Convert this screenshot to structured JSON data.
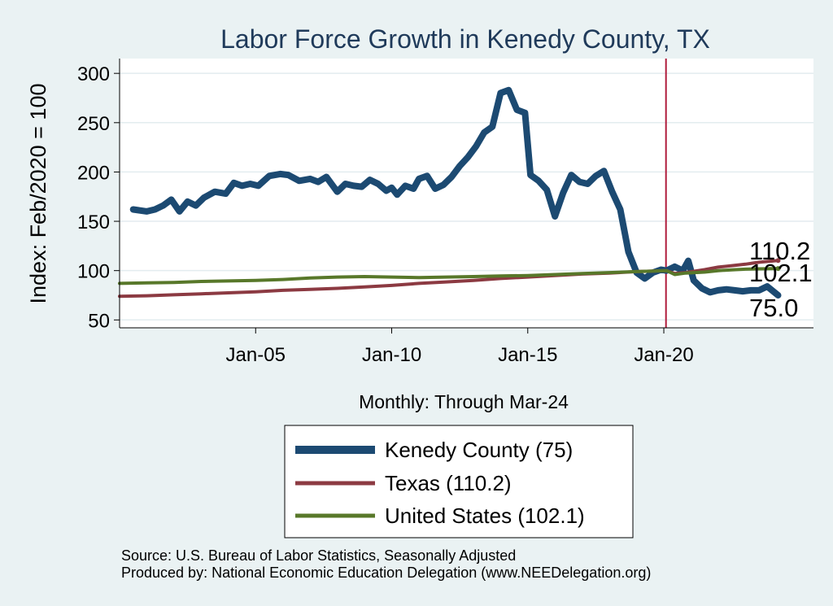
{
  "chart_data": {
    "type": "line",
    "title": "Labor Force Growth in Kenedy  County, TX",
    "ylabel": "Index: Feb/2020 = 100",
    "xlabel": "Monthly: Through Mar-24",
    "ylim": [
      42,
      315
    ],
    "xlim": [
      2000.0,
      2025.5
    ],
    "yticks": [
      50,
      100,
      150,
      200,
      250,
      300
    ],
    "xticks": [
      {
        "label": "Jan-05",
        "value": 2005.0
      },
      {
        "label": "Jan-10",
        "value": 2010.0
      },
      {
        "label": "Jan-15",
        "value": 2015.0
      },
      {
        "label": "Jan-20",
        "value": 2020.0
      }
    ],
    "reference_line": {
      "x": 2020.08,
      "color": "#b01c3c"
    },
    "grid": true,
    "legend_position": "bottom",
    "series": [
      {
        "name": "Kenedy  County",
        "legend": "Kenedy  County (75)",
        "color": "#1c4a72",
        "end_label": "75.0",
        "points": [
          [
            2000.5,
            162
          ],
          [
            2001.0,
            160
          ],
          [
            2001.3,
            162
          ],
          [
            2001.6,
            166
          ],
          [
            2001.9,
            172
          ],
          [
            2002.2,
            160
          ],
          [
            2002.5,
            170
          ],
          [
            2002.8,
            166
          ],
          [
            2003.1,
            174
          ],
          [
            2003.5,
            180
          ],
          [
            2003.9,
            178
          ],
          [
            2004.2,
            189
          ],
          [
            2004.5,
            186
          ],
          [
            2004.8,
            188
          ],
          [
            2005.1,
            186
          ],
          [
            2005.5,
            196
          ],
          [
            2005.9,
            198
          ],
          [
            2006.2,
            197
          ],
          [
            2006.6,
            191
          ],
          [
            2007.0,
            193
          ],
          [
            2007.3,
            190
          ],
          [
            2007.6,
            195
          ],
          [
            2008.0,
            180
          ],
          [
            2008.3,
            188
          ],
          [
            2008.6,
            186
          ],
          [
            2008.9,
            185
          ],
          [
            2009.2,
            192
          ],
          [
            2009.5,
            188
          ],
          [
            2009.8,
            181
          ],
          [
            2010.0,
            184
          ],
          [
            2010.2,
            177
          ],
          [
            2010.5,
            186
          ],
          [
            2010.8,
            183
          ],
          [
            2011.0,
            193
          ],
          [
            2011.3,
            196
          ],
          [
            2011.6,
            183
          ],
          [
            2011.9,
            187
          ],
          [
            2012.2,
            195
          ],
          [
            2012.5,
            206
          ],
          [
            2012.8,
            215
          ],
          [
            2013.1,
            226
          ],
          [
            2013.4,
            240
          ],
          [
            2013.7,
            246
          ],
          [
            2014.0,
            280
          ],
          [
            2014.3,
            283
          ],
          [
            2014.6,
            263
          ],
          [
            2014.9,
            260
          ],
          [
            2015.1,
            197
          ],
          [
            2015.4,
            191
          ],
          [
            2015.7,
            182
          ],
          [
            2016.0,
            155
          ],
          [
            2016.3,
            179
          ],
          [
            2016.6,
            197
          ],
          [
            2016.9,
            190
          ],
          [
            2017.2,
            188
          ],
          [
            2017.5,
            196
          ],
          [
            2017.8,
            201
          ],
          [
            2018.1,
            180
          ],
          [
            2018.4,
            162
          ],
          [
            2018.7,
            119
          ],
          [
            2019.0,
            98
          ],
          [
            2019.3,
            92
          ],
          [
            2019.6,
            98
          ],
          [
            2019.9,
            101
          ],
          [
            2020.1,
            100
          ],
          [
            2020.4,
            104
          ],
          [
            2020.7,
            100
          ],
          [
            2020.9,
            110
          ],
          [
            2021.1,
            90
          ],
          [
            2021.4,
            82
          ],
          [
            2021.7,
            78
          ],
          [
            2022.0,
            80
          ],
          [
            2022.3,
            81
          ],
          [
            2022.6,
            80
          ],
          [
            2022.9,
            79
          ],
          [
            2023.2,
            80
          ],
          [
            2023.5,
            80
          ],
          [
            2023.8,
            84
          ],
          [
            2024.2,
            75
          ]
        ]
      },
      {
        "name": "Texas",
        "legend": "Texas (110.2)",
        "color": "#8c3a42",
        "end_label": "110.2",
        "points": [
          [
            2000.0,
            74
          ],
          [
            2001.0,
            74.5
          ],
          [
            2002.0,
            75.5
          ],
          [
            2003.0,
            76.5
          ],
          [
            2004.0,
            77.5
          ],
          [
            2005.0,
            78.5
          ],
          [
            2006.0,
            80
          ],
          [
            2007.0,
            81
          ],
          [
            2008.0,
            82
          ],
          [
            2009.0,
            83.5
          ],
          [
            2010.0,
            85
          ],
          [
            2011.0,
            87
          ],
          [
            2012.0,
            88.5
          ],
          [
            2013.0,
            90
          ],
          [
            2014.0,
            92
          ],
          [
            2015.0,
            93.5
          ],
          [
            2016.0,
            95
          ],
          [
            2017.0,
            96.5
          ],
          [
            2018.0,
            97.5
          ],
          [
            2019.0,
            99
          ],
          [
            2020.1,
            100
          ],
          [
            2020.4,
            97
          ],
          [
            2020.8,
            98
          ],
          [
            2021.5,
            101
          ],
          [
            2022.0,
            103.5
          ],
          [
            2022.5,
            105
          ],
          [
            2023.0,
            106.5
          ],
          [
            2023.5,
            108.5
          ],
          [
            2024.2,
            110.2
          ]
        ]
      },
      {
        "name": "United States",
        "legend": "United States (102.1)",
        "color": "#58782a",
        "end_label": "102.1",
        "points": [
          [
            2000.0,
            87
          ],
          [
            2001.0,
            87.5
          ],
          [
            2002.0,
            88
          ],
          [
            2003.0,
            89
          ],
          [
            2004.0,
            89.5
          ],
          [
            2005.0,
            90
          ],
          [
            2006.0,
            91
          ],
          [
            2007.0,
            92.5
          ],
          [
            2008.0,
            93.5
          ],
          [
            2009.0,
            94
          ],
          [
            2010.0,
            93.5
          ],
          [
            2011.0,
            93
          ],
          [
            2012.0,
            93.5
          ],
          [
            2013.0,
            94
          ],
          [
            2014.0,
            94.5
          ],
          [
            2015.0,
            95
          ],
          [
            2016.0,
            96
          ],
          [
            2017.0,
            97
          ],
          [
            2018.0,
            98
          ],
          [
            2019.0,
            99
          ],
          [
            2020.1,
            100
          ],
          [
            2020.4,
            96
          ],
          [
            2020.8,
            97.5
          ],
          [
            2021.5,
            98.5
          ],
          [
            2022.0,
            100
          ],
          [
            2022.5,
            100.8
          ],
          [
            2023.0,
            101.5
          ],
          [
            2023.5,
            101.8
          ],
          [
            2024.2,
            102.1
          ]
        ]
      }
    ]
  },
  "source": {
    "line1": "Source: U.S. Bureau of Labor Statistics, Seasonally Adjusted",
    "line2": "Produced by: National Economic Education Delegation (www.NEEDelegation.org)"
  }
}
